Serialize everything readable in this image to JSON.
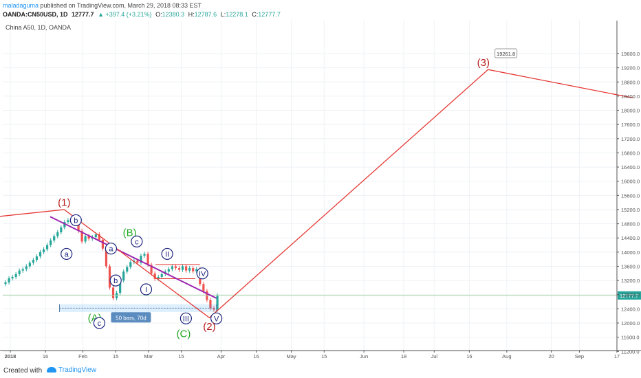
{
  "header": {
    "author": "maladaguma",
    "published": "published on TradingView.com, March 29, 2018 08:33 EST",
    "symbol": "OANDA:CN50USD, 1D",
    "last": "12777.7",
    "change": "▲ +397.4 (+3.21%)",
    "o_label": "O:",
    "o": "12380.3",
    "h_label": "H:",
    "h": "12787.6",
    "l_label": "L:",
    "l": "12278.1",
    "c_label": "C:",
    "c": "12777.7"
  },
  "chart_title": "China A50, 1D, OANDA",
  "footer": {
    "created": "Created with",
    "brand": "TradingView"
  },
  "colors": {
    "up": "#26a69a",
    "down": "#ef5350",
    "wave": "#e53935",
    "trend": "#9c27b0",
    "blue_label": "#1a237e",
    "green_label": "#22a822",
    "red_label": "#b71c1c"
  },
  "chart_data": {
    "type": "line",
    "y_axis": {
      "min": 10600,
      "max": 19800,
      "ticks": [
        "19600.0",
        "19200.0",
        "18800.0",
        "18400.0",
        "18000.0",
        "17600.0",
        "17200.0",
        "16800.0",
        "16400.0",
        "16000.0",
        "15600.0",
        "15200.0",
        "14800.0",
        "14400.0",
        "14000.0",
        "13600.0",
        "13200.0",
        "12800.0",
        "12400.0",
        "12000.0",
        "11600.0",
        "11200.0",
        "10800.0"
      ]
    },
    "x_axis": {
      "ticks": [
        "2018",
        "16",
        "Feb",
        "15",
        "Mar",
        "15",
        "Apr",
        "16",
        "May",
        "15",
        "Jun",
        "18",
        "Jul",
        "16",
        "Aug",
        "20",
        "Sep",
        "17"
      ]
    },
    "last_price_label": "12777.7",
    "target_label": "19261.8",
    "range_label": "50 bars, 70d",
    "series": [
      {
        "points": [
          [
            "2017-12-12",
            14900
          ],
          [
            "2018-01-24",
            15200
          ],
          [
            "2018-03-27",
            12150
          ],
          [
            "2018-07-24",
            19150
          ],
          [
            "2018-09-24",
            18350
          ]
        ]
      }
    ],
    "trendline": [
      [
        "2018-01-18",
        15000
      ],
      [
        "2018-03-30",
        12700
      ]
    ],
    "wave_labels": [
      {
        "text": "(1)",
        "style": "red",
        "date": "2018-01-24",
        "price": 15400
      },
      {
        "text": "b",
        "style": "circle",
        "date": "2018-01-29",
        "price": 14900
      },
      {
        "text": "a",
        "style": "circle",
        "date": "2018-01-25",
        "price": 13950
      },
      {
        "text": "a",
        "style": "circle",
        "date": "2018-02-13",
        "price": 14100
      },
      {
        "text": "(B)",
        "style": "green",
        "date": "2018-02-21",
        "price": 14550
      },
      {
        "text": "c",
        "style": "circle",
        "date": "2018-02-24",
        "price": 14300
      },
      {
        "text": "b",
        "style": "circle",
        "date": "2018-02-15",
        "price": 13200
      },
      {
        "text": "II",
        "style": "circle",
        "date": "2018-03-09",
        "price": 13950
      },
      {
        "text": "I",
        "style": "circle",
        "date": "2018-02-28",
        "price": 12950
      },
      {
        "text": "IV",
        "style": "circle",
        "date": "2018-03-24",
        "price": 13400
      },
      {
        "text": "(A)",
        "style": "green",
        "date": "2018-02-06",
        "price": 12150
      },
      {
        "text": "c",
        "style": "circle",
        "date": "2018-02-08",
        "price": 12000
      },
      {
        "text": "III",
        "style": "circle",
        "date": "2018-03-17",
        "price": 12130
      },
      {
        "text": "V",
        "style": "circle",
        "date": "2018-03-30",
        "price": 12130
      },
      {
        "text": "(2)",
        "style": "red",
        "date": "2018-03-27",
        "price": 11900
      },
      {
        "text": "(C)",
        "style": "green",
        "date": "2018-03-16",
        "price": 11700
      },
      {
        "text": "(3)",
        "style": "red",
        "date": "2018-07-22",
        "price": 19350
      }
    ],
    "grid": true
  }
}
